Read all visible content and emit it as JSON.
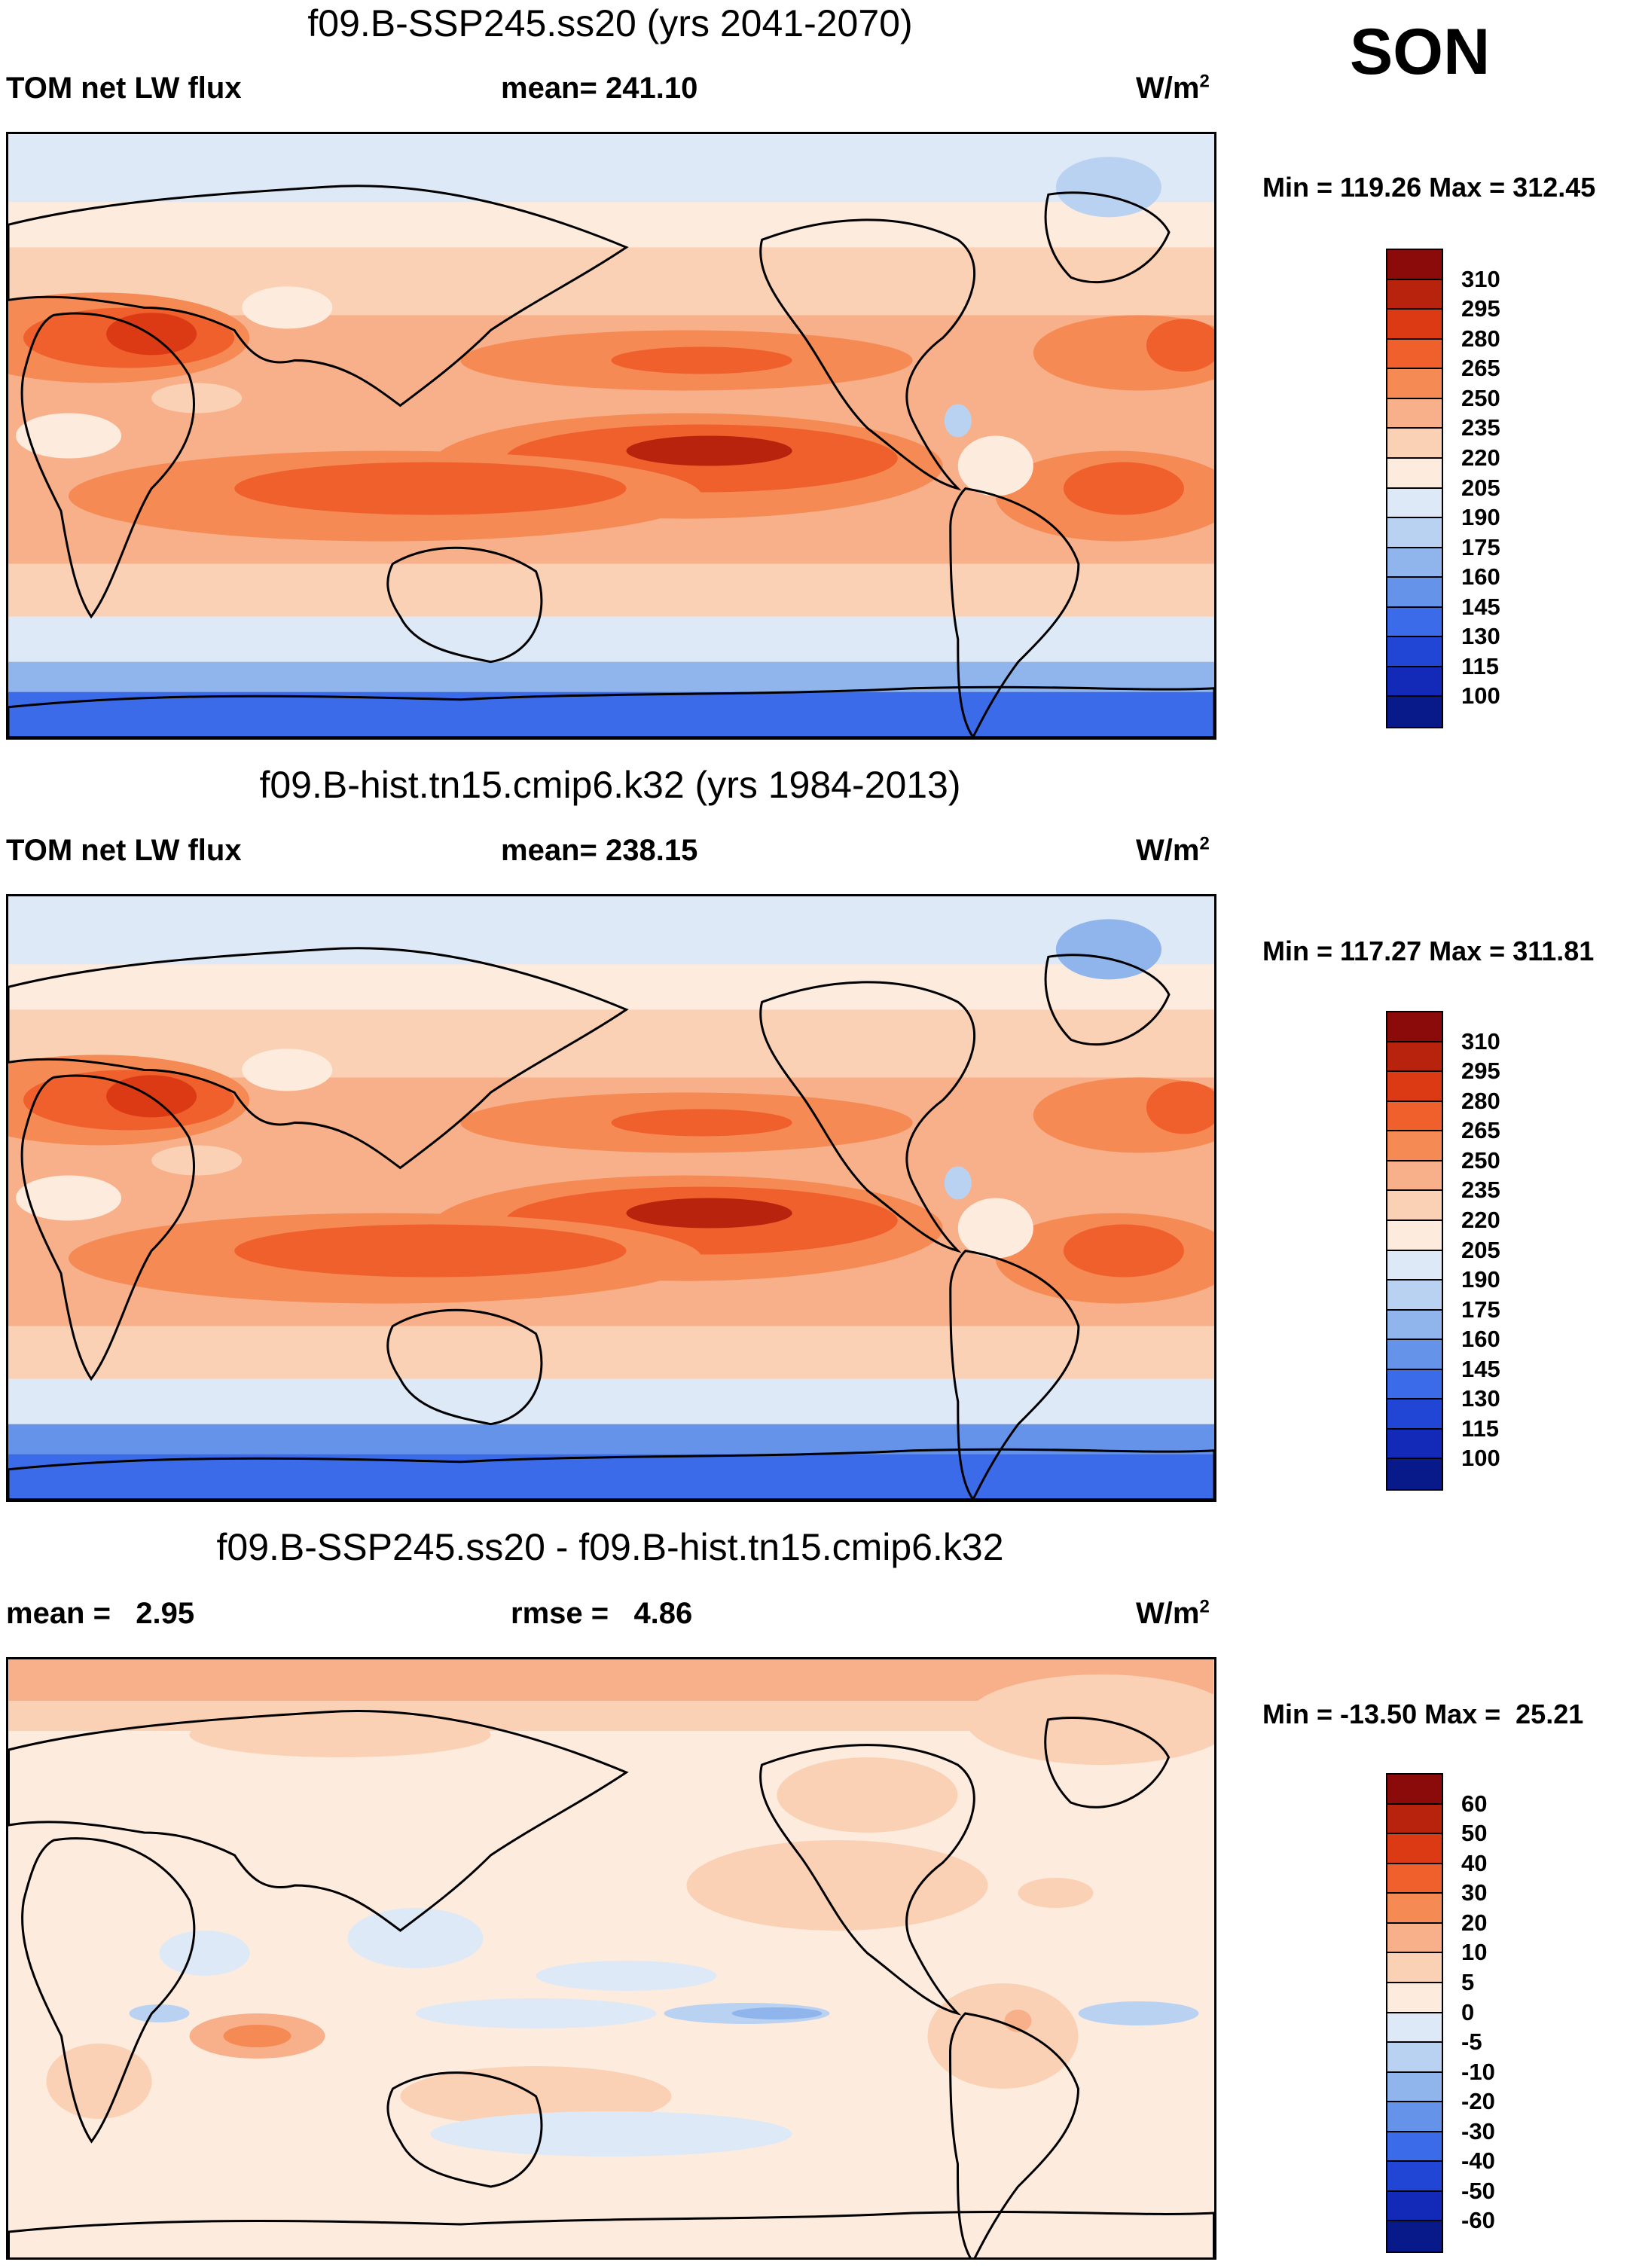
{
  "season": "SON",
  "panels": [
    {
      "id": "ssp245",
      "title": "f09.B-SSP245.ss20 (yrs 2041-2070)",
      "left": {
        "label": "TOM net LW flux",
        "text": "TOM net LW flux"
      },
      "center": {
        "text": "mean= 241.10"
      },
      "units": {
        "base": "W/m",
        "exp": "2"
      },
      "minmax": "Min = 119.26 Max = 312.45",
      "colorbar": {
        "labels": [
          "310",
          "295",
          "280",
          "265",
          "250",
          "235",
          "220",
          "205",
          "190",
          "175",
          "160",
          "145",
          "130",
          "115",
          "100"
        ],
        "colors": [
          "#8b0a0a",
          "#b8230e",
          "#dc3a15",
          "#f0602d",
          "#f58a55",
          "#f8b08a",
          "#fbd1b6",
          "#fdebdd",
          "#dde9f7",
          "#b9d2f1",
          "#90b4ec",
          "#6693ea",
          "#3c6bea",
          "#2146d6",
          "#1329b8",
          "#081a8a"
        ]
      },
      "chart_data": {
        "type": "heatmap",
        "title": "f09.B-SSP245.ss20 (yrs 2041-2070)",
        "variable": "TOM net LW flux",
        "mean": 241.1,
        "units": "W/m2",
        "min": 119.26,
        "max": 312.45,
        "contour_levels": [
          100,
          115,
          130,
          145,
          160,
          175,
          190,
          205,
          220,
          235,
          250,
          265,
          280,
          295,
          310
        ]
      }
    },
    {
      "id": "hist",
      "title": "f09.B-hist.tn15.cmip6.k32 (yrs 1984-2013)",
      "left": {
        "text": "TOM net LW flux"
      },
      "center": {
        "text": "mean= 238.15"
      },
      "units": {
        "base": "W/m",
        "exp": "2"
      },
      "minmax": "Min = 117.27 Max = 311.81",
      "colorbar": {
        "labels": [
          "310",
          "295",
          "280",
          "265",
          "250",
          "235",
          "220",
          "205",
          "190",
          "175",
          "160",
          "145",
          "130",
          "115",
          "100"
        ],
        "colors": [
          "#8b0a0a",
          "#b8230e",
          "#dc3a15",
          "#f0602d",
          "#f58a55",
          "#f8b08a",
          "#fbd1b6",
          "#fdebdd",
          "#dde9f7",
          "#b9d2f1",
          "#90b4ec",
          "#6693ea",
          "#3c6bea",
          "#2146d6",
          "#1329b8",
          "#081a8a"
        ]
      },
      "chart_data": {
        "type": "heatmap",
        "title": "f09.B-hist.tn15.cmip6.k32 (yrs 1984-2013)",
        "variable": "TOM net LW flux",
        "mean": 238.15,
        "units": "W/m2",
        "min": 117.27,
        "max": 311.81,
        "contour_levels": [
          100,
          115,
          130,
          145,
          160,
          175,
          190,
          205,
          220,
          235,
          250,
          265,
          280,
          295,
          310
        ]
      }
    },
    {
      "id": "diff",
      "title": "f09.B-SSP245.ss20 - f09.B-hist.tn15.cmip6.k32",
      "left": {
        "text": "mean =   2.95"
      },
      "center": {
        "text": "rmse =   4.86"
      },
      "units": {
        "base": "W/m",
        "exp": "2"
      },
      "minmax": "Min = -13.50 Max =  25.21",
      "colorbar": {
        "labels": [
          "60",
          "50",
          "40",
          "30",
          "20",
          "10",
          "5",
          "0",
          "-5",
          "-10",
          "-20",
          "-30",
          "-40",
          "-50",
          "-60"
        ],
        "colors": [
          "#8b0a0a",
          "#b8230e",
          "#dc3a15",
          "#f0602d",
          "#f58a55",
          "#f8b08a",
          "#fbd1b6",
          "#fdebdd",
          "#dde9f7",
          "#b9d2f1",
          "#90b4ec",
          "#6693ea",
          "#3c6bea",
          "#2146d6",
          "#1329b8",
          "#081a8a"
        ]
      },
      "chart_data": {
        "type": "heatmap",
        "title": "f09.B-SSP245.ss20 - f09.B-hist.tn15.cmip6.k32",
        "mean": 2.95,
        "rmse": 4.86,
        "units": "W/m2",
        "min": -13.5,
        "max": 25.21,
        "contour_levels": [
          -60,
          -50,
          -40,
          -30,
          -20,
          -10,
          -5,
          0,
          5,
          10,
          20,
          30,
          40,
          50,
          60
        ]
      }
    }
  ]
}
